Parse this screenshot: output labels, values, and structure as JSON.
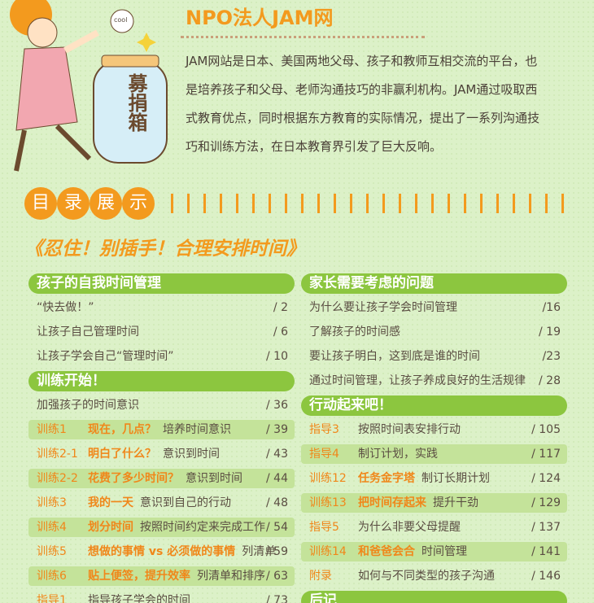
{
  "header": {
    "title": "NPO法人JAM网",
    "paragraph": [
      "JAM网站是日本、美国两地父母、孩子和教师互相交流的平台，也",
      "是培养孩子和父母、老师沟通技巧的非赢利机构。JAM通过吸取西",
      "式教育优点，同时根据东方教育的实际情况，提出了一系列沟通技",
      "巧和训练方法，在日本教育界引发了巨大反响。"
    ],
    "jar_label": "募捐箱",
    "coin_text": "cool"
  },
  "toc": {
    "badge": [
      "目",
      "录",
      "展",
      "示"
    ],
    "book_title": "《忍住！别插手！合理安排时间》",
    "columns": [
      [
        {
          "header": "孩子的自我时间管理"
        },
        {
          "title": "“快去做！”",
          "page": "/ 2"
        },
        {
          "title": "让孩子自己管理时间",
          "page": "/ 6"
        },
        {
          "title": "让孩子学会自己“管理时间”",
          "page": "/ 10"
        },
        {
          "header": "训练开始！"
        },
        {
          "title": "加强孩子的时间意识",
          "page": "/ 36"
        },
        {
          "label": "训练1",
          "title": "现在，几点？",
          "desc": "培养时间意识",
          "page": "/ 39",
          "highlight": true
        },
        {
          "label": "训练2-1",
          "title": "明白了什么？",
          "desc": "意识到时间",
          "page": "/ 43"
        },
        {
          "label": "训练2-2",
          "title": "花费了多少时间？",
          "desc": "意识到时间",
          "page": "/ 44",
          "highlight": true
        },
        {
          "label": "训练3",
          "title": "我的一天",
          "desc": "意识到自己的行动",
          "page": "/ 48"
        },
        {
          "label": "训练4",
          "title": "划分时间",
          "desc": "按照时间约定来完成工作",
          "page": "/ 54",
          "highlight": true
        },
        {
          "label": "训练5",
          "title": "想做的事情 vs 必须做的事情",
          "desc": "列清单",
          "page": "/ 59"
        },
        {
          "label": "训练6",
          "title": "贴上便签，提升效率",
          "desc": "列清单和排序",
          "page": "/ 63",
          "highlight": true
        },
        {
          "label": "指导1",
          "desc": "指导孩子学会的时间",
          "page": "/ 73"
        }
      ],
      [
        {
          "header": "家长需要考虑的问题"
        },
        {
          "title": "为什么要让孩子学会时间管理",
          "page": "/16"
        },
        {
          "title": "了解孩子的时间感",
          "page": "/ 19"
        },
        {
          "title": "要让孩子明白，这到底是谁的时间",
          "page": "/23"
        },
        {
          "title": "通过时间管理，让孩子养成良好的生活规律",
          "page": "/ 28"
        },
        {
          "header": "行动起来吧！"
        },
        {
          "label": "指导3",
          "desc": "按照时间表安排行动",
          "page": "/ 105"
        },
        {
          "label": "指导4",
          "desc": "制订计划，实践",
          "page": "/ 117",
          "highlight": true
        },
        {
          "label": "训练12",
          "title": "任务金字塔",
          "desc": "制订长期计划",
          "page": "/ 124"
        },
        {
          "label": "训练13",
          "title": "把时间存起来",
          "desc": "提升干劲",
          "page": "/ 129",
          "highlight": true
        },
        {
          "label": "指导5",
          "desc": "为什么非要父母提醒",
          "page": "/ 137"
        },
        {
          "label": "训练14",
          "title": "和爸爸会合",
          "desc": "时间管理",
          "page": "/ 141",
          "highlight": true
        },
        {
          "label": "附录",
          "desc": "如何与不同类型的孩子沟通",
          "page": "/ 146"
        },
        {
          "header": "后记"
        }
      ]
    ]
  }
}
